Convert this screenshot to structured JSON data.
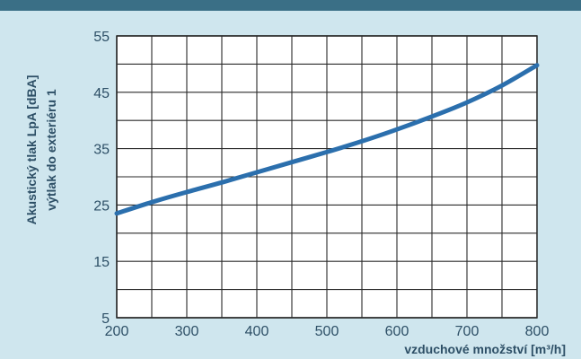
{
  "chart_data": {
    "type": "line",
    "xlabel": "vzduchové množství [m³/h]",
    "ylabel_lines": [
      "Akustický tlak LpA [dBA]",
      "výtlak do exteriéru 1"
    ],
    "xlim": [
      200,
      800
    ],
    "ylim": [
      5,
      55
    ],
    "x_ticks": [
      200,
      300,
      400,
      500,
      600,
      700,
      800
    ],
    "y_ticks": [
      5,
      15,
      25,
      35,
      45,
      55
    ],
    "grid": true,
    "series": [
      {
        "color": "#2b6fad",
        "points": [
          [
            200,
            23.5
          ],
          [
            250,
            25.5
          ],
          [
            300,
            27.3
          ],
          [
            350,
            29.0
          ],
          [
            400,
            30.8
          ],
          [
            450,
            32.6
          ],
          [
            500,
            34.4
          ],
          [
            550,
            36.3
          ],
          [
            600,
            38.4
          ],
          [
            650,
            40.7
          ],
          [
            700,
            43.2
          ],
          [
            750,
            46.2
          ],
          [
            800,
            49.8
          ]
        ]
      }
    ],
    "colors": {
      "plot_background": "#ffffff",
      "grid": "#2a2a2a",
      "text": "#2d4f66",
      "frame": "#cfe6ee"
    }
  }
}
